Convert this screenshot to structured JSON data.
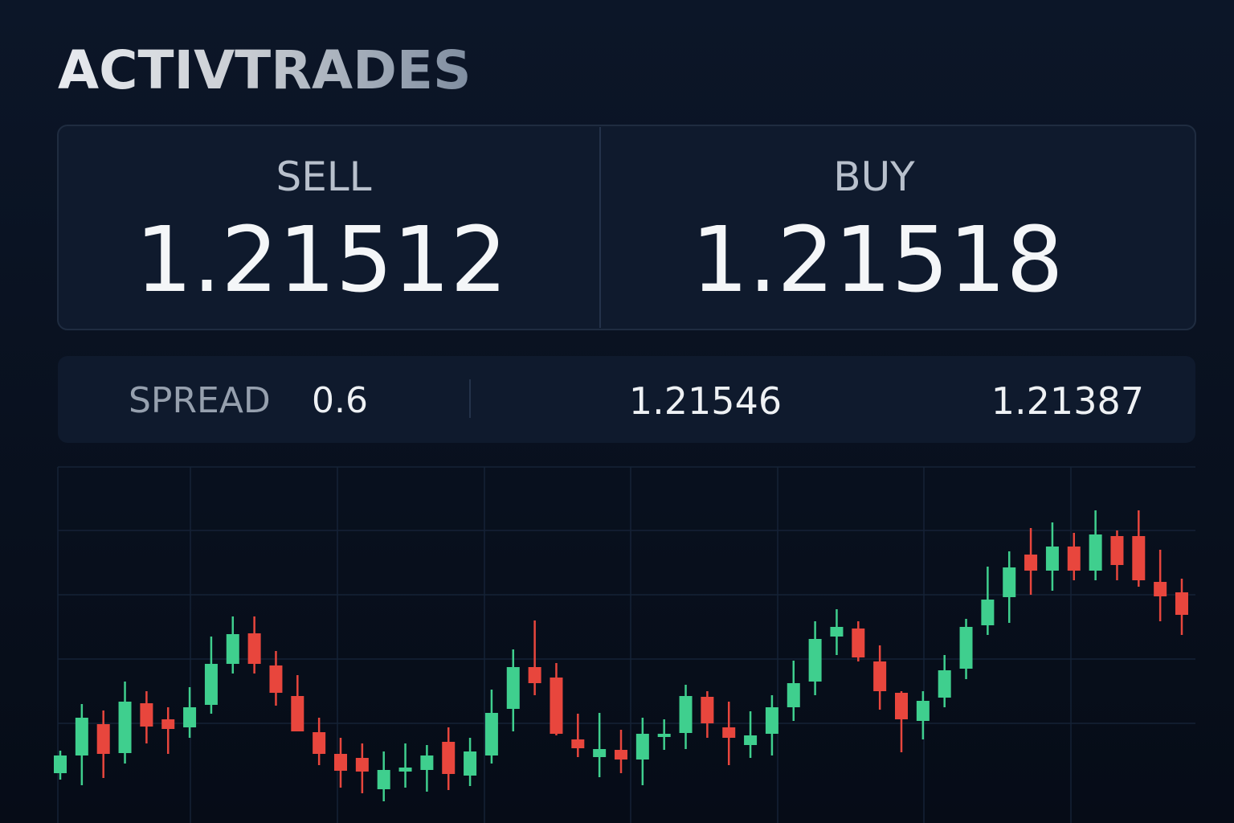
{
  "brand": "ACTIVTRADES",
  "quote": {
    "sell": {
      "label": "SELL",
      "price": "1.21512"
    },
    "buy": {
      "label": "BUY",
      "price": "1.21518"
    }
  },
  "spread": {
    "label": "SPREAD",
    "value": "0.6",
    "stats": [
      "1.21546",
      "1.21387"
    ]
  },
  "chart_data": {
    "type": "candlestick",
    "ylim": [
      0,
      420
    ],
    "up_color": "#3fcf8e",
    "down_color": "#e8463d",
    "open": [
      38,
      60,
      99,
      63,
      125,
      105,
      95,
      123,
      174,
      212,
      172,
      134,
      89,
      62,
      57,
      18,
      40,
      42,
      77,
      35,
      60,
      118,
      170,
      157,
      80,
      58,
      67,
      55,
      83,
      88,
      133,
      95,
      73,
      87,
      120,
      152,
      208,
      218,
      177,
      138,
      103,
      132,
      168,
      222,
      257,
      310,
      290,
      320,
      290,
      333,
      333,
      276,
      263
    ],
    "high": [
      66,
      124,
      116,
      152,
      140,
      120,
      145,
      208,
      233,
      233,
      190,
      160,
      107,
      82,
      75,
      65,
      75,
      73,
      95,
      82,
      142,
      192,
      228,
      175,
      112,
      113,
      92,
      107,
      105,
      148,
      140,
      127,
      115,
      135,
      178,
      227,
      242,
      227,
      197,
      140,
      140,
      185,
      230,
      295,
      314,
      343,
      350,
      337,
      365,
      340,
      365,
      316,
      280
    ],
    "low": [
      30,
      23,
      32,
      50,
      75,
      62,
      82,
      112,
      162,
      162,
      122,
      90,
      48,
      20,
      13,
      3,
      20,
      15,
      17,
      22,
      50,
      90,
      135,
      85,
      58,
      33,
      38,
      23,
      67,
      68,
      82,
      48,
      57,
      60,
      103,
      135,
      185,
      177,
      117,
      64,
      80,
      120,
      155,
      210,
      225,
      260,
      265,
      278,
      278,
      278,
      270,
      227,
      210
    ],
    "close": [
      60,
      107,
      62,
      127,
      96,
      93,
      120,
      174,
      211,
      174,
      138,
      90,
      62,
      41,
      40,
      42,
      45,
      60,
      37,
      65,
      113,
      170,
      150,
      87,
      69,
      68,
      55,
      87,
      87,
      134,
      100,
      82,
      85,
      120,
      150,
      205,
      220,
      182,
      140,
      105,
      128,
      166,
      220,
      254,
      294,
      290,
      320,
      290,
      335,
      297,
      278,
      258,
      235
    ]
  }
}
